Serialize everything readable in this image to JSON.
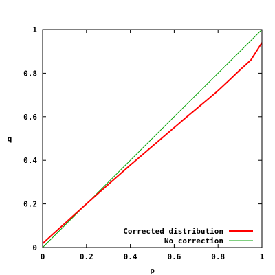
{
  "chart_data": {
    "type": "line",
    "title": "",
    "xlabel": "p",
    "ylabel": "q",
    "xlim": [
      0,
      1
    ],
    "ylim": [
      0,
      1
    ],
    "xticks": [
      0,
      0.2,
      0.4,
      0.6,
      0.8,
      1
    ],
    "yticks": [
      0,
      0.2,
      0.4,
      0.6,
      0.8,
      1
    ],
    "xtick_labels": [
      "0",
      "0.2",
      "0.4",
      "0.6",
      "0.8",
      "1"
    ],
    "ytick_labels": [
      "0",
      "0.2",
      "0.4",
      "0.6",
      "0.8",
      "1"
    ],
    "grid": false,
    "legend_position": "bottom-right",
    "series": [
      {
        "name": "Corrected distribution",
        "color": "#ff0000",
        "x": [
          0,
          0.05,
          0.1,
          0.15,
          0.2,
          0.25,
          0.3,
          0.35,
          0.4,
          0.45,
          0.5,
          0.55,
          0.6,
          0.65,
          0.7,
          0.75,
          0.8,
          0.85,
          0.9,
          0.95,
          1.0
        ],
        "y": [
          0.018,
          0.064,
          0.109,
          0.155,
          0.2,
          0.245,
          0.29,
          0.334,
          0.378,
          0.421,
          0.464,
          0.507,
          0.55,
          0.593,
          0.635,
          0.677,
          0.72,
          0.767,
          0.815,
          0.861,
          0.94
        ]
      },
      {
        "name": "No correction",
        "color": "#00a000",
        "x": [
          0,
          1
        ],
        "y": [
          0,
          1
        ]
      }
    ]
  }
}
